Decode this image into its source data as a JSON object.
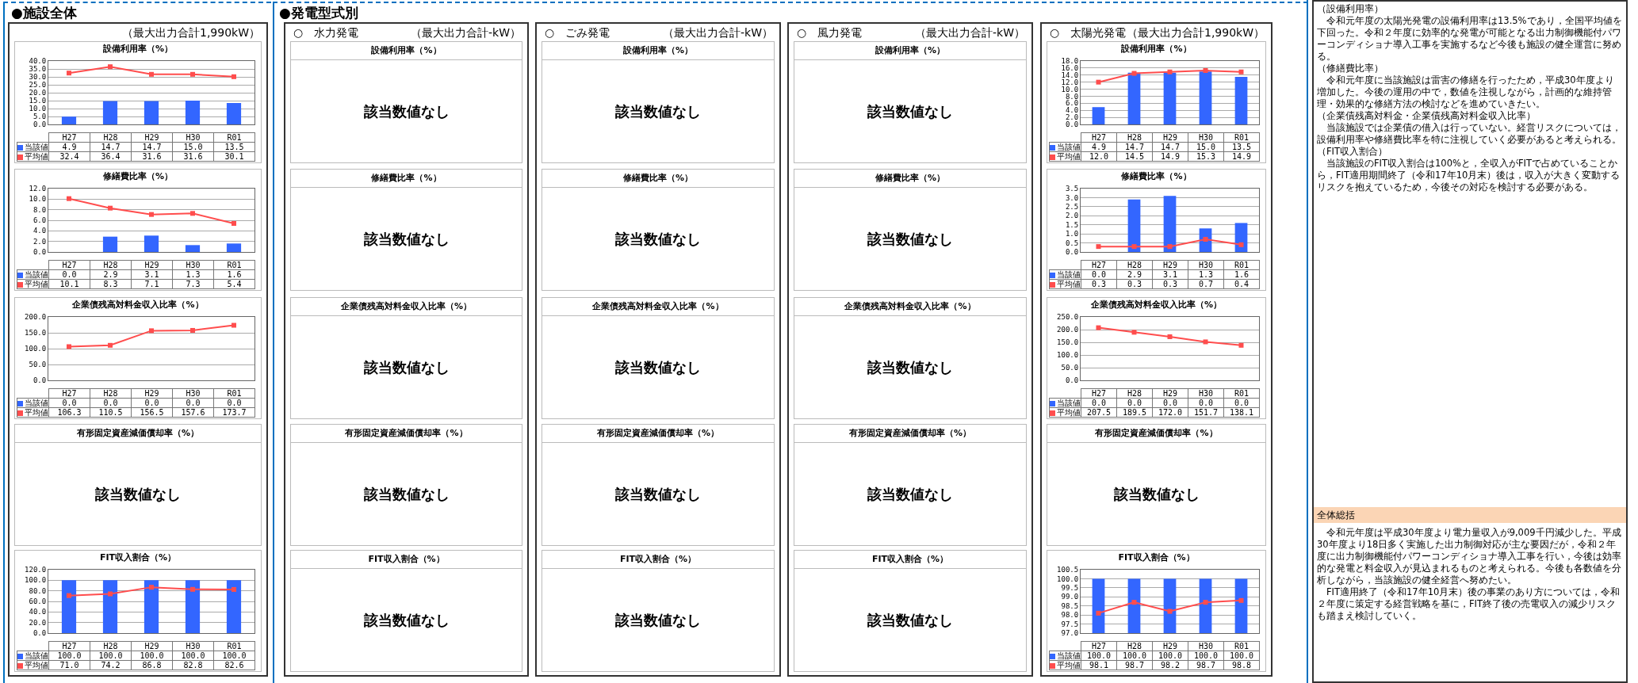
{
  "chart_data": [
    {
      "type": "other",
      "title": "●施設全体"
    },
    {
      "type": "other",
      "subtitle": "（最大出力合計1,990kW）"
    },
    {
      "type": "bar",
      "title": "設備利用率（%）",
      "categories": [
        "H27",
        "H28",
        "H29",
        "H30",
        "R01"
      ],
      "legend": "bottom left",
      "grid": "y",
      "marker": "square",
      "tick_labels": "y",
      "ylim": [
        0,
        40
      ],
      "yticks": [
        {
          "value": 0,
          "label": "0.0"
        },
        {
          "value": 5,
          "label": "5.0"
        },
        {
          "value": 10,
          "label": "10.0"
        },
        {
          "value": 15,
          "label": "15.0"
        },
        {
          "value": 20,
          "label": "20.0"
        },
        {
          "value": 25,
          "label": "25.0"
        },
        {
          "value": 30,
          "label": "30.0"
        },
        {
          "value": 35,
          "label": "35.0"
        },
        {
          "value": 40,
          "label": "40.0"
        }
      ],
      "series": [
        {
          "name": "当該値",
          "type": "bar",
          "color": "#3366ff",
          "values": [
            4.9,
            14.7,
            14.7,
            15.0,
            13.5
          ],
          "value_labels": [
            "4.9",
            "14.7",
            "14.7",
            "15.0",
            "13.5"
          ]
        },
        {
          "name": "平均値",
          "type": "line",
          "color": "#ff4d4d",
          "values": [
            32.4,
            36.4,
            31.6,
            31.6,
            30.1
          ],
          "value_labels": [
            "32.4",
            "36.4",
            "31.6",
            "31.6",
            "30.1"
          ]
        }
      ]
    },
    {
      "type": "bar",
      "title": "修繕費比率（%）",
      "categories": [
        "H27",
        "H28",
        "H29",
        "H30",
        "R01"
      ],
      "grid": "y",
      "marker": "square",
      "legend": "bottom left",
      "tick_labels": "y",
      "ylim": [
        0,
        12
      ],
      "yticks": [
        {
          "value": 0,
          "label": "0.0"
        },
        {
          "value": 2,
          "label": "2.0"
        },
        {
          "value": 4,
          "label": "4.0"
        },
        {
          "value": 6,
          "label": "6.0"
        },
        {
          "value": 8,
          "label": "8.0"
        },
        {
          "value": 10,
          "label": "10.0"
        },
        {
          "value": 12,
          "label": "12.0"
        }
      ],
      "series": [
        {
          "name": "当該値",
          "type": "bar",
          "color": "#3366ff",
          "values": [
            0.0,
            2.9,
            3.1,
            1.3,
            1.6
          ],
          "value_labels": [
            "0.0",
            "2.9",
            "3.1",
            "1.3",
            "1.6"
          ]
        },
        {
          "name": "平均値",
          "type": "line",
          "color": "#ff4d4d",
          "values": [
            10.1,
            8.3,
            7.1,
            7.3,
            5.4
          ],
          "value_labels": [
            "10.1",
            "8.3",
            "7.1",
            "7.3",
            "5.4"
          ]
        }
      ]
    },
    {
      "type": "bar",
      "title": "企業債残高対料金収入比率（%）",
      "categories": [
        "H27",
        "H28",
        "H29",
        "H30",
        "R01"
      ],
      "grid": "y",
      "marker": "square",
      "legend": "bottom left",
      "tick_labels": "y",
      "ylim": [
        0,
        200
      ],
      "yticks": [
        {
          "value": 0,
          "label": "0.0"
        },
        {
          "value": 50,
          "label": "50.0"
        },
        {
          "value": 100,
          "label": "100.0"
        },
        {
          "value": 150,
          "label": "150.0"
        },
        {
          "value": 200,
          "label": "200.0"
        }
      ],
      "series": [
        {
          "name": "当該値",
          "type": "bar",
          "color": "#3366ff",
          "values": [
            0.0,
            0.0,
            0.0,
            0.0,
            0.0
          ],
          "value_labels": [
            "0.0",
            "0.0",
            "0.0",
            "0.0",
            "0.0"
          ]
        },
        {
          "name": "平均値",
          "type": "line",
          "color": "#ff4d4d",
          "values": [
            106.3,
            110.5,
            156.5,
            157.6,
            173.7
          ],
          "value_labels": [
            "106.3",
            "110.5",
            "156.5",
            "157.6",
            "173.7"
          ]
        }
      ]
    },
    {
      "type": "other",
      "title": "有形固定資産減価償却率（%）",
      "annotations": [
        "該当数値なし"
      ]
    },
    {
      "type": "bar",
      "title": "FIT収入割合（%）",
      "categories": [
        "H27",
        "H28",
        "H29",
        "H30",
        "R01"
      ],
      "grid": "y",
      "marker": "square",
      "legend": "bottom left",
      "tick_labels": "y",
      "ylim": [
        0,
        120
      ],
      "yticks": [
        {
          "value": 0,
          "label": "0.0"
        },
        {
          "value": 20,
          "label": "20.0"
        },
        {
          "value": 40,
          "label": "40.0"
        },
        {
          "value": 60,
          "label": "60.0"
        },
        {
          "value": 80,
          "label": "80.0"
        },
        {
          "value": 100,
          "label": "100.0"
        },
        {
          "value": 120,
          "label": "120.0"
        }
      ],
      "series": [
        {
          "name": "当該値",
          "type": "bar",
          "color": "#3366ff",
          "values": [
            100.0,
            100.0,
            100.0,
            100.0,
            100.0
          ],
          "value_labels": [
            "100.0",
            "100.0",
            "100.0",
            "100.0",
            "100.0"
          ]
        },
        {
          "name": "平均値",
          "type": "line",
          "color": "#ff4d4d",
          "values": [
            71.0,
            74.2,
            86.8,
            82.8,
            82.6
          ],
          "value_labels": [
            "71.0",
            "74.2",
            "86.8",
            "82.8",
            "82.6"
          ]
        }
      ]
    },
    {
      "type": "other",
      "title": "●発電型式別"
    },
    {
      "type": "other",
      "title": "○　水力発電",
      "subtitle": "（最大出力合計-kW）"
    },
    {
      "type": "other",
      "title": "設備利用率（%）",
      "annotations": [
        "該当数値なし"
      ]
    },
    {
      "type": "other",
      "title": "修繕費比率（%）",
      "annotations": [
        "該当数値なし"
      ]
    },
    {
      "type": "other",
      "title": "企業債残高対料金収入比率（%）",
      "annotations": [
        "該当数値なし"
      ]
    },
    {
      "type": "other",
      "title": "有形固定資産減価償却率（%）",
      "annotations": [
        "該当数値なし"
      ]
    },
    {
      "type": "other",
      "title": "FIT収入割合（%）",
      "annotations": [
        "該当数値なし"
      ]
    },
    {
      "type": "other",
      "title": "○　ごみ発電",
      "subtitle": "（最大出力合計-kW）"
    },
    {
      "type": "other",
      "title": "設備利用率（%）",
      "annotations": [
        "該当数値なし"
      ]
    },
    {
      "type": "other",
      "title": "修繕費比率（%）",
      "annotations": [
        "該当数値なし"
      ]
    },
    {
      "type": "other",
      "title": "企業債残高対料金収入比率（%）",
      "annotations": [
        "該当数値なし"
      ]
    },
    {
      "type": "other",
      "title": "有形固定資産減価償却率（%）",
      "annotations": [
        "該当数値なし"
      ]
    },
    {
      "type": "other",
      "title": "FIT収入割合（%）",
      "annotations": [
        "該当数値なし"
      ]
    },
    {
      "type": "other",
      "title": "○　風力発電",
      "subtitle": "（最大出力合計-kW）"
    },
    {
      "type": "other",
      "title": "設備利用率（%）",
      "annotations": [
        "該当数値なし"
      ]
    },
    {
      "type": "other",
      "title": "修繕費比率（%）",
      "annotations": [
        "該当数値なし"
      ]
    },
    {
      "type": "other",
      "title": "企業債残高対料金収入比率（%）",
      "annotations": [
        "該当数値なし"
      ]
    },
    {
      "type": "other",
      "title": "有形固定資産減価償却率（%）",
      "annotations": [
        "該当数値なし"
      ]
    },
    {
      "type": "other",
      "title": "FIT収入割合（%）",
      "annotations": [
        "該当数値なし"
      ]
    },
    {
      "type": "other",
      "title": "○　太陽光発電",
      "subtitle": "（最大出力合計1,990kW）"
    },
    {
      "type": "bar",
      "title": "設備利用率（%）",
      "categories": [
        "H27",
        "H28",
        "H29",
        "H30",
        "R01"
      ],
      "grid": "y",
      "marker": "square",
      "legend": "bottom left",
      "tick_labels": "y",
      "ylim": [
        0,
        18
      ],
      "yticks": [
        {
          "value": 0,
          "label": "0.0"
        },
        {
          "value": 2,
          "label": "2.0"
        },
        {
          "value": 4,
          "label": "4.0"
        },
        {
          "value": 6,
          "label": "6.0"
        },
        {
          "value": 8,
          "label": "8.0"
        },
        {
          "value": 10,
          "label": "10.0"
        },
        {
          "value": 12,
          "label": "12.0"
        },
        {
          "value": 14,
          "label": "14.0"
        },
        {
          "value": 16,
          "label": "16.0"
        },
        {
          "value": 18,
          "label": "18.0"
        }
      ],
      "series": [
        {
          "name": "当該値",
          "type": "bar",
          "color": "#3366ff",
          "values": [
            4.9,
            14.7,
            14.7,
            15.0,
            13.5
          ],
          "value_labels": [
            "4.9",
            "14.7",
            "14.7",
            "15.0",
            "13.5"
          ]
        },
        {
          "name": "平均値",
          "type": "line",
          "color": "#ff4d4d",
          "values": [
            12.0,
            14.5,
            14.9,
            15.3,
            14.9
          ],
          "value_labels": [
            "12.0",
            "14.5",
            "14.9",
            "15.3",
            "14.9"
          ]
        }
      ]
    },
    {
      "type": "bar",
      "title": "修繕費比率（%）",
      "categories": [
        "H27",
        "H28",
        "H29",
        "H30",
        "R01"
      ],
      "grid": "y",
      "marker": "square",
      "legend": "bottom left",
      "tick_labels": "y",
      "ylim": [
        0,
        3.5
      ],
      "yticks": [
        {
          "value": 0,
          "label": "0.0"
        },
        {
          "value": 0.5,
          "label": "0.5"
        },
        {
          "value": 1,
          "label": "1.0"
        },
        {
          "value": 1.5,
          "label": "1.5"
        },
        {
          "value": 2,
          "label": "2.0"
        },
        {
          "value": 2.5,
          "label": "2.5"
        },
        {
          "value": 3,
          "label": "3.0"
        },
        {
          "value": 3.5,
          "label": "3.5"
        }
      ],
      "series": [
        {
          "name": "当該値",
          "type": "bar",
          "color": "#3366ff",
          "values": [
            0.0,
            2.9,
            3.1,
            1.3,
            1.6
          ],
          "value_labels": [
            "0.0",
            "2.9",
            "3.1",
            "1.3",
            "1.6"
          ]
        },
        {
          "name": "平均値",
          "type": "line",
          "color": "#ff4d4d",
          "values": [
            0.3,
            0.3,
            0.3,
            0.7,
            0.4
          ],
          "value_labels": [
            "0.3",
            "0.3",
            "0.3",
            "0.7",
            "0.4"
          ]
        }
      ]
    },
    {
      "type": "bar",
      "title": "企業債残高対料金収入比率（%）",
      "categories": [
        "H27",
        "H28",
        "H29",
        "H30",
        "R01"
      ],
      "grid": "y",
      "marker": "square",
      "legend": "bottom left",
      "tick_labels": "y",
      "ylim": [
        0,
        250
      ],
      "yticks": [
        {
          "value": 0,
          "label": "0.0"
        },
        {
          "value": 50,
          "label": "50.0"
        },
        {
          "value": 100,
          "label": "100.0"
        },
        {
          "value": 150,
          "label": "150.0"
        },
        {
          "value": 200,
          "label": "200.0"
        },
        {
          "value": 250,
          "label": "250.0"
        }
      ],
      "series": [
        {
          "name": "当該値",
          "type": "bar",
          "color": "#3366ff",
          "values": [
            0.0,
            0.0,
            0.0,
            0.0,
            0.0
          ],
          "value_labels": [
            "0.0",
            "0.0",
            "0.0",
            "0.0",
            "0.0"
          ]
        },
        {
          "name": "平均値",
          "type": "line",
          "color": "#ff4d4d",
          "values": [
            207.5,
            189.5,
            172.0,
            151.7,
            138.1
          ],
          "value_labels": [
            "207.5",
            "189.5",
            "172.0",
            "151.7",
            "138.1"
          ]
        }
      ]
    },
    {
      "type": "other",
      "title": "有形固定資産減価償却率（%）",
      "annotations": [
        "該当数値なし"
      ]
    },
    {
      "type": "bar",
      "title": "FIT収入割合（%）",
      "categories": [
        "H27",
        "H28",
        "H29",
        "H30",
        "R01"
      ],
      "grid": "y",
      "marker": "square",
      "legend": "bottom left",
      "tick_labels": "y",
      "ylim": [
        97,
        100.5
      ],
      "yticks": [
        {
          "value": 97,
          "label": "97.0"
        },
        {
          "value": 97.5,
          "label": "97.5"
        },
        {
          "value": 98,
          "label": "98.0"
        },
        {
          "value": 98.5,
          "label": "98.5"
        },
        {
          "value": 99,
          "label": "99.0"
        },
        {
          "value": 99.5,
          "label": "99.5"
        },
        {
          "value": 100,
          "label": "100.0"
        },
        {
          "value": 100.5,
          "label": "100.5"
        }
      ],
      "series": [
        {
          "name": "当該値",
          "type": "bar",
          "color": "#3366ff",
          "values": [
            100.0,
            100.0,
            100.0,
            100.0,
            100.0
          ],
          "value_labels": [
            "100.0",
            "100.0",
            "100.0",
            "100.0",
            "100.0"
          ]
        },
        {
          "name": "平均値",
          "type": "line",
          "color": "#ff4d4d",
          "values": [
            98.1,
            98.7,
            98.2,
            98.7,
            98.8
          ],
          "value_labels": [
            "98.1",
            "98.7",
            "98.2",
            "98.7",
            "98.8"
          ]
        }
      ]
    },
    {
      "type": "other",
      "annotations": [
        "（設備利用率）",
        "　令和元年度の太陽光発電の設備利用率は13.5%であり，全国平均値を下回った。令和２年度に効率的な発電が可能となる出力制御機能付パワーコンディショナ導入工事を実施するなど今後も施設の健全運営に努める。",
        "（修繕費比率）",
        "　令和元年度に当該施設は雷害の修繕を行ったため，平成30年度より増加した。今後の運用の中で，数値を注視しながら，計画的な維持管理・効果的な修繕方法の検討などを進めていきたい。",
        "（企業債残高対料金・企業債残高対料金収入比率）",
        "　当該施設では企業債の借入は行っていない。経営リスクについては，設備利用率や修繕費比率を特に注視していく必要があると考えられる。",
        "（FIT収入割合）",
        "　当該施設のFIT収入割合は100%と，全収入がFITで占めていることから，FIT適用期間終了（令和17年10月末）後は，収入が大きく変動するリスクを抱えているため，今後その対応を検討する必要がある。"
      ]
    },
    {
      "type": "other",
      "title": "全体総括",
      "annotations": [
        "　令和元年度は平成30年度より電力量収入が9,009千円減少した。平成30年度より18日多く実施した出力制御対応が主な要因だが，令和２年度に出力制御機能付パワーコンディショナ導入工事を行い，今後は効率的な発電と料金収入が見込まれるものと考えられる。今後も各数値を分析しながら，当該施設の健全経営へ努めたい。",
        "　FIT適用終了（令和17年10月末）後の事業のあり方については，令和２年度に策定する経営戦略を基に，FIT終了後の売電収入の減少リスクも踏まえ検討していく。"
      ]
    }
  ]
}
